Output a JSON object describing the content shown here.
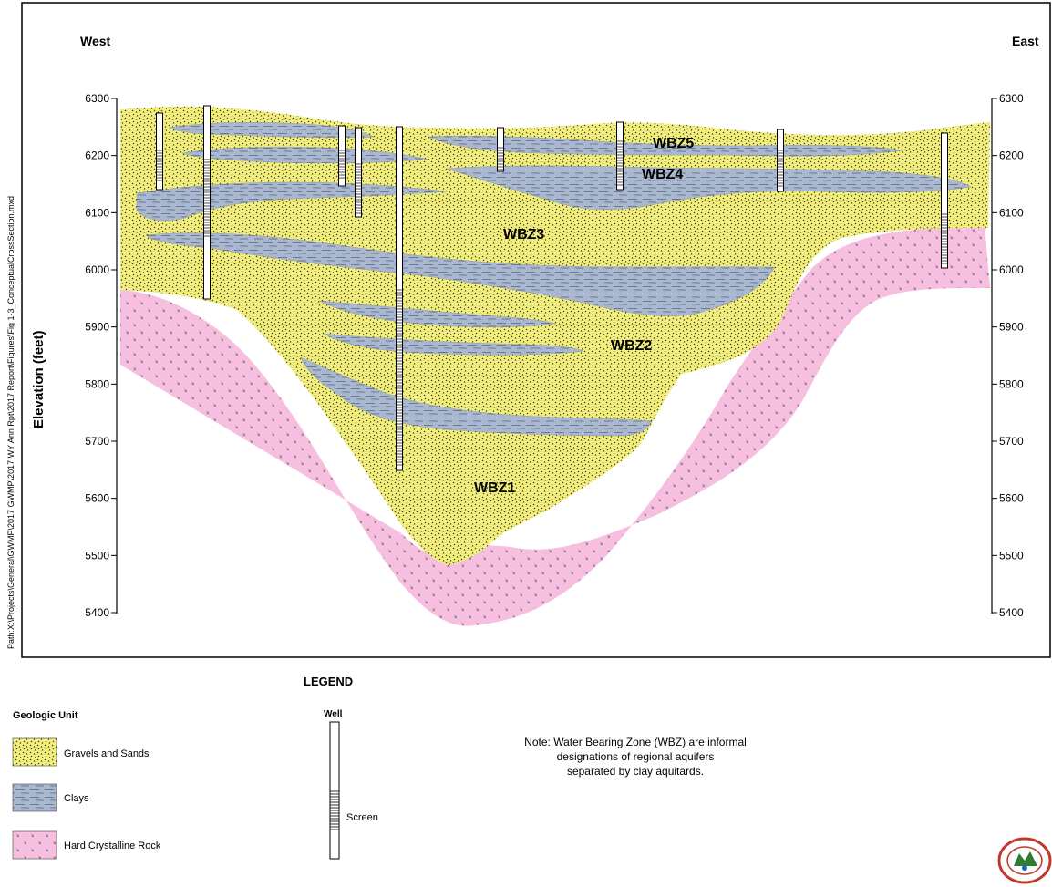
{
  "side_path": "Path:X:\\Projects\\General\\GWMP\\2017 GWMP\\2017 WY Ann Rpt\\2017 Report\\Figures\\Fig 1-3_ConceptualCrossSection.mxd",
  "orientation": {
    "left": "West",
    "right": "East"
  },
  "axis": {
    "ylabel": "Elevation (feet)",
    "ticks": [
      "6300",
      "6200",
      "6100",
      "6000",
      "5900",
      "5800",
      "5700",
      "5600",
      "5500",
      "5400"
    ],
    "unit": "feet",
    "range": [
      5400,
      6300
    ]
  },
  "zones": [
    {
      "id": "wbz5",
      "label": "WBZ5"
    },
    {
      "id": "wbz4",
      "label": "WBZ4"
    },
    {
      "id": "wbz3",
      "label": "WBZ3"
    },
    {
      "id": "wbz2",
      "label": "WBZ2"
    },
    {
      "id": "wbz1",
      "label": "WBZ1"
    }
  ],
  "legend": {
    "title": "LEGEND",
    "geologic_unit_title": "Geologic Unit",
    "units": [
      {
        "id": "gravel",
        "label": "Gravels and Sands"
      },
      {
        "id": "clay",
        "label": "Clays"
      },
      {
        "id": "rock",
        "label": "Hard Crystalline Rock"
      }
    ],
    "well_title": "Well",
    "screen_label": "Screen"
  },
  "note": {
    "lines": [
      "Note: Water Bearing Zone (WBZ) are informal",
      "designations of regional aquifers",
      "separated by clay aquitards."
    ]
  },
  "colors": {
    "gravel": "#f2ee7e",
    "clay": "#a9b7cf",
    "rock": "#f6bfe0",
    "frame": "#000000"
  },
  "logo": {
    "name": "agency-seal-logo"
  }
}
